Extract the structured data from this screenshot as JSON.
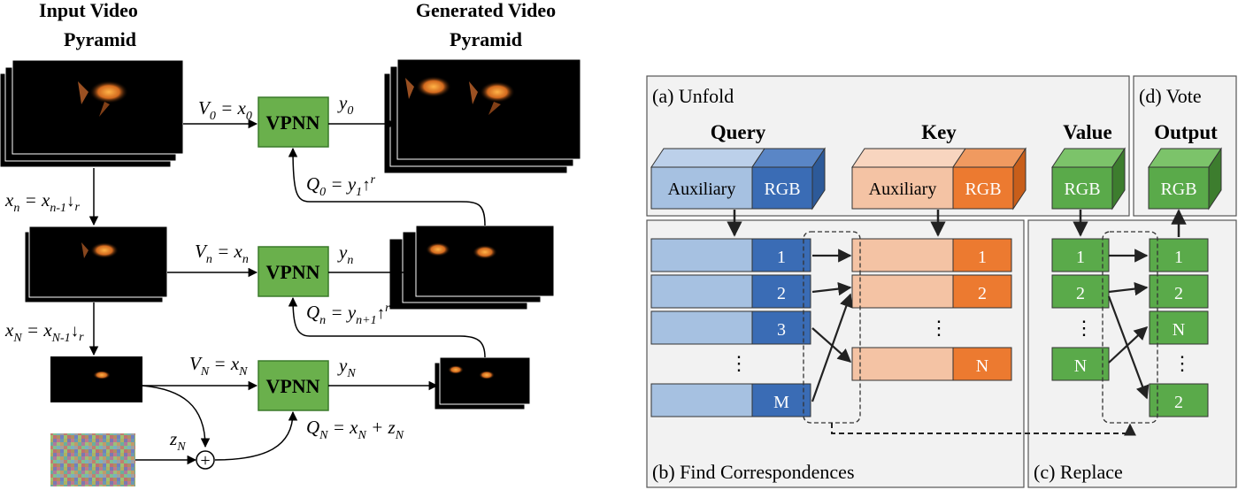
{
  "left": {
    "title_input": [
      "Input Video",
      "Pyramid"
    ],
    "title_output": [
      "Generated Video",
      "Pyramid"
    ],
    "vpnn_label": "VPNN",
    "labels": {
      "v0": "V₀ = x₀",
      "y0": "y₀",
      "q0": "Q₀ = y₁↑ʳ",
      "xn": "xₙ = xₙ₋₁↓ᵣ",
      "vn": "Vₙ = xₙ",
      "yn": "yₙ",
      "qn": "Qₙ = yₙ₊₁↑ʳ",
      "xN": "xₙ = xₙ₋₁↓ᵣ",
      "vN": "Vₙ = xₙ",
      "yN": "yₙ",
      "qN": "Qₙ = xₙ + zₙ",
      "zN": "zₙ",
      "plus": "+"
    },
    "labels_display": {
      "v0": [
        "V",
        "0",
        " = x",
        "0"
      ],
      "y0": [
        "y",
        "0"
      ],
      "q0": [
        "Q",
        "0",
        " = y",
        "1",
        "↑",
        "r"
      ],
      "xn": [
        "x",
        "n",
        " = x",
        "n-1",
        "↓",
        "r"
      ],
      "vn": [
        "V",
        "n",
        " = x",
        "n"
      ],
      "yn": [
        "y",
        "n"
      ],
      "qn": [
        "Q",
        "n",
        " = y",
        "n+1",
        "↑",
        "r"
      ],
      "xN": [
        "x",
        "N",
        " = x",
        "N-1",
        "↓",
        "r"
      ],
      "vN": [
        "V",
        "N",
        " = x",
        "N"
      ],
      "yN": [
        "y",
        "N"
      ],
      "qN": [
        "Q",
        "N",
        " = x",
        "N",
        " + z",
        "N"
      ],
      "zN": [
        "z",
        "N"
      ]
    }
  },
  "right": {
    "panel_unfold": "(a) Unfold",
    "panel_vote": "(d) Vote",
    "panel_find": "(b) Find Correspondences",
    "panel_replace": "(c) Replace",
    "headers": {
      "query": "Query",
      "key": "Key",
      "value": "Value",
      "output": "Output"
    },
    "cube_labels": {
      "auxiliary": "Auxiliary",
      "rgb": "RGB"
    },
    "query_rows": [
      "1",
      "2",
      "3",
      "M"
    ],
    "key_rows": [
      "1",
      "2",
      "N"
    ],
    "value_rows": [
      "1",
      "2",
      "N"
    ],
    "output_rows": [
      "1",
      "2",
      "N",
      "2"
    ],
    "ellipsis": "⋮"
  },
  "colors": {
    "vpnn_green": "#6ab04c",
    "cell_green": "#5aaa4a",
    "query_light": "#a6c1e1",
    "query_dark": "#3a6cb5",
    "key_light": "#f4c3a4",
    "key_dark": "#ec7a30",
    "panel_bg": "#f2f2f2"
  }
}
